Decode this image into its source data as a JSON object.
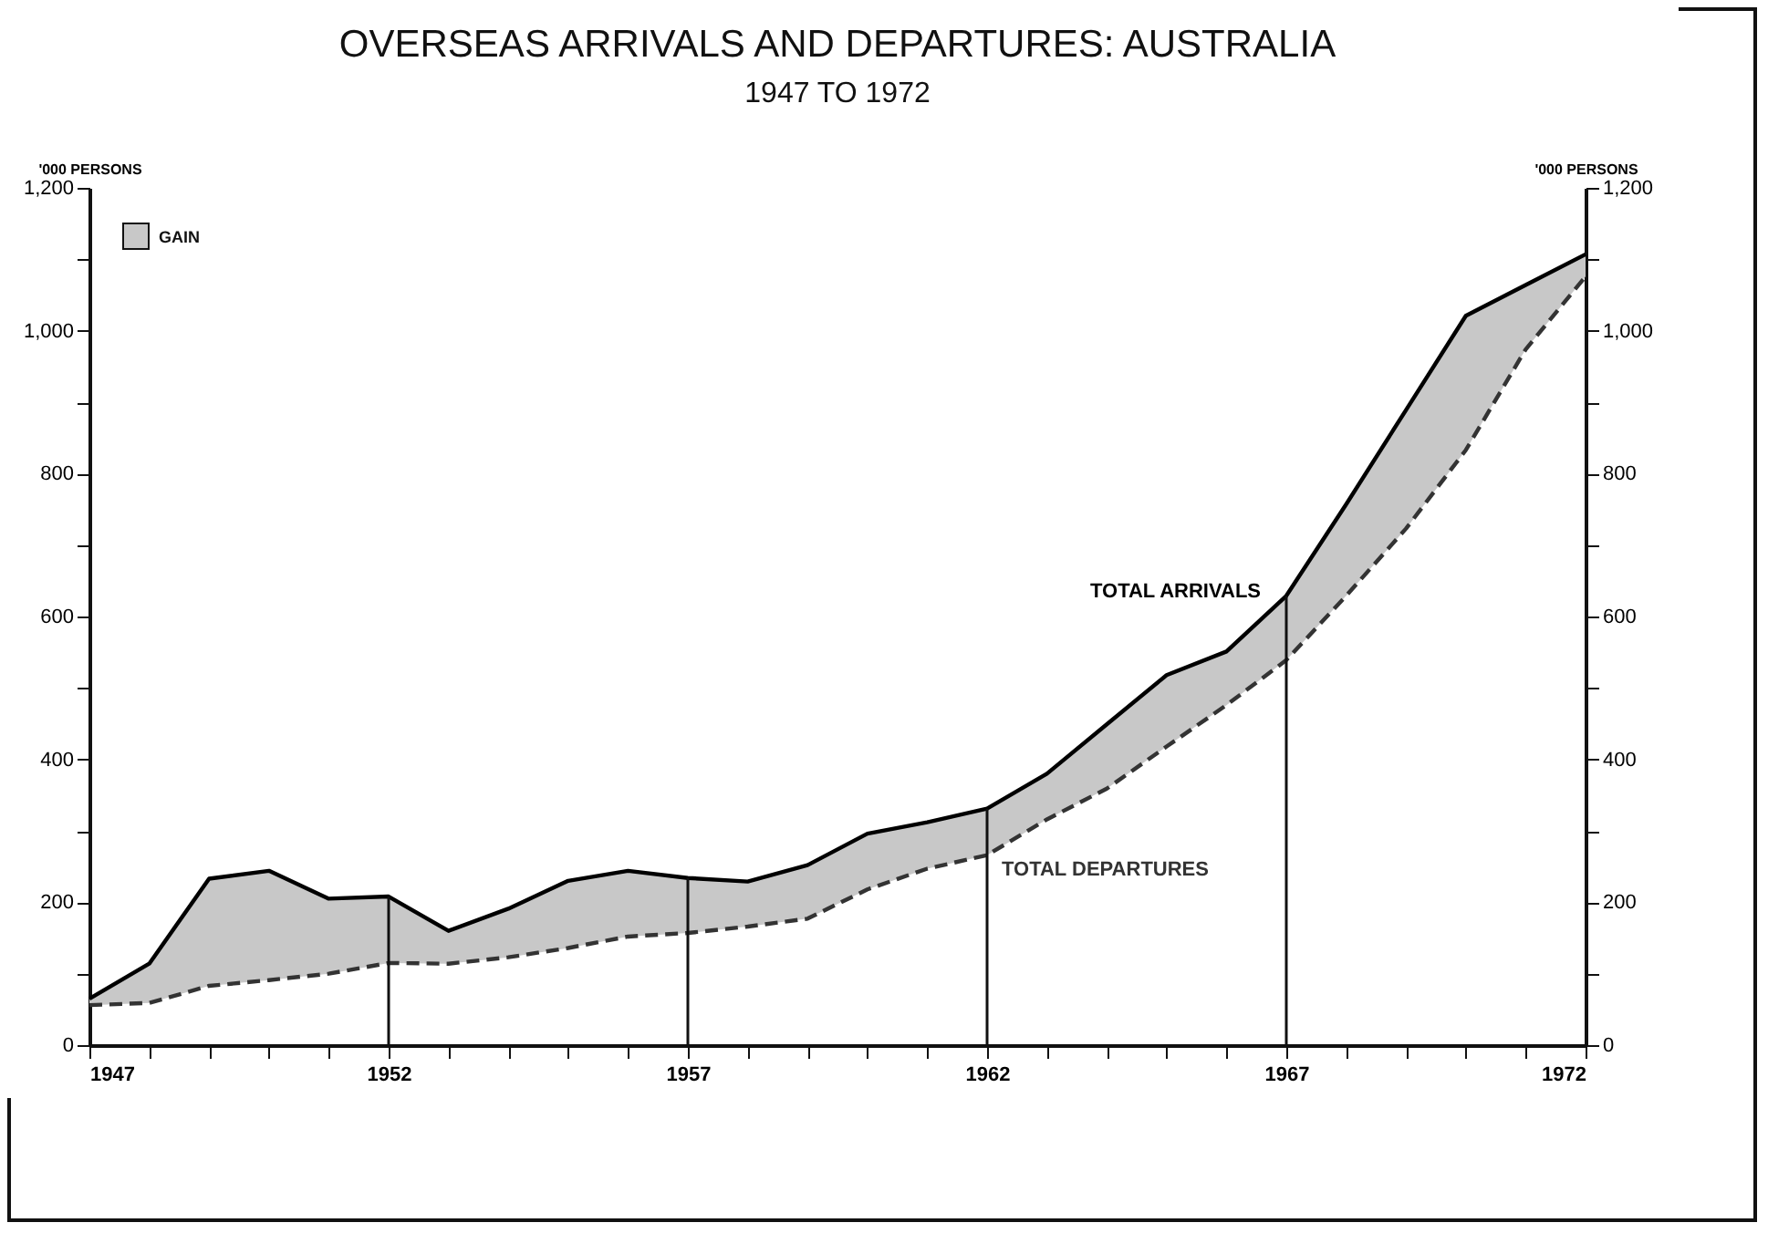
{
  "chart_data": {
    "type": "line",
    "title": "OVERSEAS ARRIVALS AND DEPARTURES: AUSTRALIA",
    "subtitle": "1947 TO 1972",
    "ylabel": "'000 PERSONS",
    "y2label": "'000 PERSONS",
    "annotations": [
      "GAIN"
    ],
    "x": [
      1947,
      1948,
      1949,
      1950,
      1951,
      1952,
      1953,
      1954,
      1955,
      1956,
      1957,
      1958,
      1959,
      1960,
      1961,
      1962,
      1963,
      1964,
      1965,
      1966,
      1967,
      1968,
      1969,
      1970,
      1971,
      1972
    ],
    "series": [
      {
        "name": "TOTAL ARRIVALS",
        "color": "#000000",
        "line_style": "solid",
        "values": [
          65,
          114,
          233,
          244,
          205,
          208,
          160,
          191,
          230,
          244,
          234,
          229,
          252,
          296,
          312,
          331,
          380,
          449,
          518,
          551,
          629,
          757,
          889,
          1021,
          1064,
          1107
        ],
        "lower": [
          56,
          59,
          83,
          91,
          100,
          115,
          114,
          123,
          136,
          152,
          157,
          166,
          177,
          218,
          247,
          266,
          316,
          359,
          418,
          476,
          539,
          629,
          723,
          833,
          974,
          1076
        ],
        "upper": [
          65,
          114,
          233,
          244,
          205,
          208,
          160,
          191,
          230,
          244,
          234,
          229,
          252,
          296,
          312,
          331,
          380,
          449,
          518,
          551,
          629,
          757,
          889,
          1021,
          1064,
          1107
        ]
      },
      {
        "name": "TOTAL DEPARTURES",
        "color": "#333333",
        "line_style": "dashed",
        "values": [
          56,
          59,
          83,
          91,
          100,
          115,
          114,
          123,
          136,
          152,
          157,
          166,
          177,
          218,
          247,
          266,
          316,
          359,
          418,
          476,
          539,
          629,
          723,
          833,
          974,
          1076
        ]
      }
    ],
    "xlim": [
      1947,
      1972
    ],
    "xticks": [
      1947,
      {
        "value": 1948,
        "label": null
      },
      {
        "value": 1949,
        "label": null
      },
      {
        "value": 1950,
        "label": null
      },
      {
        "value": 1951,
        "label": null
      },
      1952,
      {
        "value": 1953,
        "label": null
      },
      {
        "value": 1954,
        "label": null
      },
      {
        "value": 1955,
        "label": null
      },
      {
        "value": 1956,
        "label": null
      },
      1957,
      {
        "value": 1958,
        "label": null
      },
      {
        "value": 1959,
        "label": null
      },
      {
        "value": 1960,
        "label": null
      },
      {
        "value": 1961,
        "label": null
      },
      1962,
      {
        "value": 1963,
        "label": null
      },
      {
        "value": 1964,
        "label": null
      },
      {
        "value": 1965,
        "label": null
      },
      {
        "value": 1966,
        "label": null
      },
      1967,
      {
        "value": 1968,
        "label": null
      },
      {
        "value": 1969,
        "label": null
      },
      {
        "value": 1970,
        "label": null
      },
      {
        "value": 1971,
        "label": null
      },
      1972
    ],
    "ylim": [
      0,
      1200
    ],
    "yticks": [
      0,
      {
        "value": 100,
        "label": null
      },
      200,
      {
        "value": 300,
        "label": null
      },
      400,
      {
        "value": 500,
        "label": null
      },
      600,
      {
        "value": 700,
        "label": null
      },
      800,
      {
        "value": 900,
        "label": null
      },
      {
        "value": 1000,
        "label": "1,000"
      },
      {
        "value": 1100,
        "label": null
      },
      {
        "value": 1200,
        "label": "1,200"
      }
    ],
    "y2lim": [
      0,
      1200
    ],
    "y2ticks": [
      0,
      {
        "value": 100,
        "label": null
      },
      200,
      {
        "value": 300,
        "label": null
      },
      400,
      {
        "value": 500,
        "label": null
      },
      600,
      {
        "value": 700,
        "label": null
      },
      800,
      {
        "value": 900,
        "label": null
      },
      {
        "value": 1000,
        "label": "1,000"
      },
      {
        "value": 1100,
        "label": null
      },
      {
        "value": 1200,
        "label": "1,200"
      }
    ],
    "ref_lines": [
      {
        "axis": "x",
        "value": 1952
      },
      {
        "axis": "x",
        "value": 1957
      },
      {
        "axis": "x",
        "value": 1962
      },
      {
        "axis": "x",
        "value": 1967
      }
    ],
    "grid": false,
    "marker": "none"
  }
}
